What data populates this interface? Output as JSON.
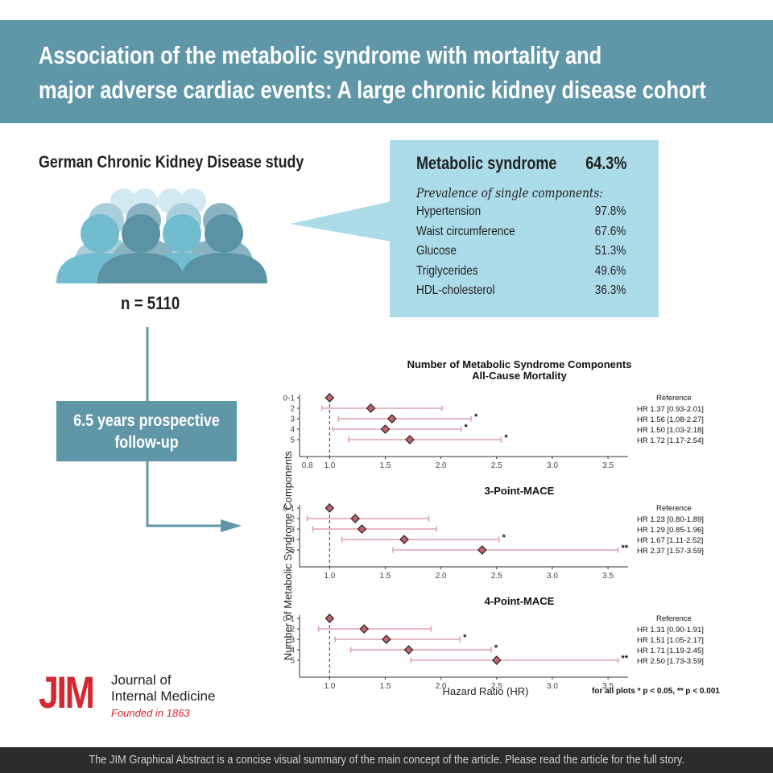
{
  "title": {
    "line1": "Association of the metabolic syndrome with mortality and",
    "line2": "major adverse cardiac events: A large chronic kidney disease cohort"
  },
  "study": {
    "name": "German Chronic Kidney Disease study",
    "n": "n = 5110",
    "followup_line1": "6.5 years prospective",
    "followup_line2": "follow-up"
  },
  "prevalence": {
    "metabolic_syndrome_label": "Metabolic syndrome",
    "metabolic_syndrome_value": "64.3%",
    "subtitle": "Prevalence of single components:",
    "components": [
      {
        "name": "Hypertension",
        "value": "97.8%"
      },
      {
        "name": "Waist circumference",
        "value": "67.6%"
      },
      {
        "name": "Glucose",
        "value": "51.3%"
      },
      {
        "name": "Triglycerides",
        "value": "49.6%"
      },
      {
        "name": "HDL-cholesterol",
        "value": "36.3%"
      }
    ]
  },
  "colors": {
    "banner": "#5f97a8",
    "callout": "#abdce8",
    "marker": "#c2636c",
    "ci": "#e3a2ab",
    "jim_red": "#d6262f"
  },
  "chart_data": {
    "type": "forest",
    "title": "Number of Metabolic Syndrome Components",
    "ylabel": "Number of Metabolic Syndrome Components",
    "xlabel": "Hazard Ratio (HR)",
    "footnote": "for all plots * p < 0.05, ** p < 0.001",
    "reference_line": 1.0,
    "categories": [
      "0-1",
      "2",
      "3",
      "4",
      "5"
    ],
    "panels": [
      {
        "title": "All-Cause Mortality",
        "xlim": [
          0.73,
          3.68
        ],
        "xticks": [
          0.8,
          1.0,
          1.5,
          2.0,
          2.5,
          3.0,
          3.5
        ],
        "tick_labels": [
          "0.8",
          "1.0",
          "1.5",
          "2.0",
          "2.5",
          "3.0",
          "3.5"
        ],
        "hr": [
          1.0,
          1.37,
          1.56,
          1.5,
          1.72
        ],
        "lower": [
          null,
          0.93,
          1.08,
          1.03,
          1.17
        ],
        "upper": [
          null,
          2.01,
          2.27,
          2.18,
          2.54
        ],
        "sig": [
          "",
          "",
          "*",
          "*",
          "*"
        ],
        "labels": [
          "Reference",
          "HR 1.37 [0.93-2.01]",
          "HR 1.56 [1.08-2.27]",
          "HR 1.50 [1.03-2.18]",
          "HR 1.72 [1.17-2.54]"
        ]
      },
      {
        "title": "3-Point-MACE",
        "xlim": [
          0.73,
          3.68
        ],
        "xticks": [
          1.0,
          1.5,
          2.0,
          2.5,
          3.0,
          3.5
        ],
        "tick_labels": [
          "1.0",
          "1.5",
          "2.0",
          "2.5",
          "3.0",
          "3.5"
        ],
        "hr": [
          1.0,
          1.23,
          1.29,
          1.67,
          2.37
        ],
        "lower": [
          null,
          0.8,
          0.85,
          1.11,
          1.57
        ],
        "upper": [
          null,
          1.89,
          1.96,
          2.52,
          3.59
        ],
        "sig": [
          "",
          "",
          "",
          "*",
          "**"
        ],
        "labels": [
          "Reference",
          "HR 1.23 [0.80-1.89]",
          "HR 1.29 [0.85-1.96]",
          "HR 1.67 [1.11-2.52]",
          "HR 2.37 [1.57-3.59]"
        ]
      },
      {
        "title": "4-Point-MACE",
        "xlim": [
          0.73,
          3.68
        ],
        "xticks": [
          1.0,
          1.5,
          2.0,
          2.5,
          3.0,
          3.5
        ],
        "tick_labels": [
          "1.0",
          "1.5",
          "2.0",
          "2.5",
          "3.0",
          "3.5"
        ],
        "hr": [
          1.0,
          1.31,
          1.51,
          1.71,
          2.5
        ],
        "lower": [
          null,
          0.9,
          1.05,
          1.19,
          1.73
        ],
        "upper": [
          null,
          1.91,
          2.17,
          2.45,
          3.59
        ],
        "sig": [
          "",
          "",
          "*",
          "*",
          "**"
        ],
        "labels": [
          "Reference",
          "HR 1.31 [0.90-1.91]",
          "HR 1.51 [1.05-2.17]",
          "HR 1.71 [1.19-2.45]",
          "HR 2.50 [1.73-3.59]"
        ]
      }
    ]
  },
  "logo": {
    "mark": "JIM",
    "line1": "Journal of",
    "line2": "Internal Medicine",
    "line3": "Founded in 1863"
  },
  "footer": {
    "text": "The JIM Graphical Abstract is a concise visual summary of the main concept of the article. Please read the article for the full story."
  }
}
